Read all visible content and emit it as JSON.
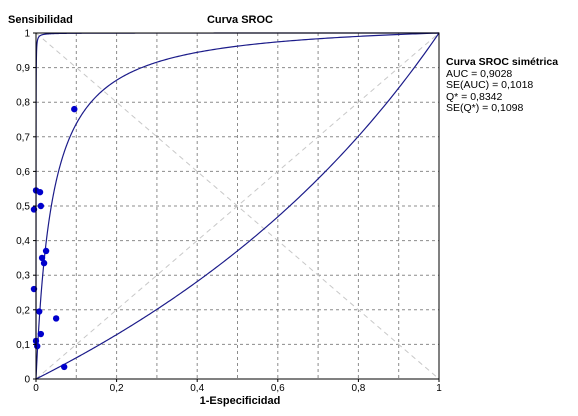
{
  "chart_data": {
    "type": "scatter",
    "title": "Curva SROC",
    "xlabel": "1-Especificidad",
    "ylabel": "Sensibilidad",
    "xlim": [
      0,
      1
    ],
    "ylim": [
      0,
      1
    ],
    "x_ticks": [
      "0",
      "0,2",
      "0,4",
      "0,6",
      "0,8",
      "1"
    ],
    "y_ticks": [
      "0",
      "0,1",
      "0,2",
      "0,3",
      "0,4",
      "0,5",
      "0,6",
      "0,7",
      "0,8",
      "0,9",
      "1"
    ],
    "grid": true,
    "points": [
      {
        "x": 0.095,
        "y": 0.78
      },
      {
        "x": 0.0,
        "y": 0.545
      },
      {
        "x": 0.01,
        "y": 0.54
      },
      {
        "x": 0.012,
        "y": 0.5
      },
      {
        "x": -0.005,
        "y": 0.49
      },
      {
        "x": 0.025,
        "y": 0.37
      },
      {
        "x": 0.015,
        "y": 0.35
      },
      {
        "x": 0.02,
        "y": 0.335
      },
      {
        "x": -0.005,
        "y": 0.26
      },
      {
        "x": 0.008,
        "y": 0.195
      },
      {
        "x": 0.05,
        "y": 0.175
      },
      {
        "x": 0.012,
        "y": 0.13
      },
      {
        "x": 0.0,
        "y": 0.11
      },
      {
        "x": 0.003,
        "y": 0.095
      },
      {
        "x": 0.07,
        "y": 0.035
      }
    ],
    "sroc_q": 0.8342,
    "stats": {
      "title": "Curva SROC simétrica",
      "auc": "AUC = 0,9028",
      "se_auc": "SE(AUC) = 0,1018",
      "q": "Q* = 0,8342",
      "se_q": "SE(Q*) = 0,1098"
    },
    "colors": {
      "curve": "#1c1c8a",
      "points": "#0000cc",
      "grid": "#8c8c8c",
      "diagonal": "#c8c8c8"
    }
  }
}
